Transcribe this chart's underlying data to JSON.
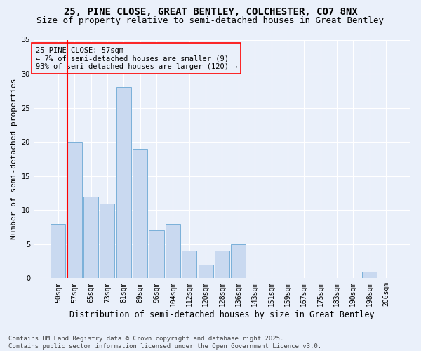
{
  "title_line1": "25, PINE CLOSE, GREAT BENTLEY, COLCHESTER, CO7 8NX",
  "title_line2": "Size of property relative to semi-detached houses in Great Bentley",
  "xlabel": "Distribution of semi-detached houses by size in Great Bentley",
  "ylabel": "Number of semi-detached properties",
  "categories": [
    "50sqm",
    "57sqm",
    "65sqm",
    "73sqm",
    "81sqm",
    "89sqm",
    "96sqm",
    "104sqm",
    "112sqm",
    "120sqm",
    "128sqm",
    "136sqm",
    "143sqm",
    "151sqm",
    "159sqm",
    "167sqm",
    "175sqm",
    "183sqm",
    "190sqm",
    "198sqm",
    "206sqm"
  ],
  "values": [
    8,
    20,
    12,
    11,
    28,
    19,
    7,
    8,
    4,
    2,
    4,
    5,
    0,
    0,
    0,
    0,
    0,
    0,
    0,
    1,
    0
  ],
  "bar_color": "#c9d9f0",
  "bar_edge_color": "#7ab0d9",
  "red_line_bar_index": 1,
  "ylim": [
    0,
    35
  ],
  "yticks": [
    0,
    5,
    10,
    15,
    20,
    25,
    30,
    35
  ],
  "annotation_title": "25 PINE CLOSE: 57sqm",
  "annotation_line1": "← 7% of semi-detached houses are smaller (9)",
  "annotation_line2": "93% of semi-detached houses are larger (120) →",
  "footer_line1": "Contains HM Land Registry data © Crown copyright and database right 2025.",
  "footer_line2": "Contains public sector information licensed under the Open Government Licence v3.0.",
  "background_color": "#eaf0fa",
  "grid_color": "#ffffff",
  "title_fontsize": 10,
  "subtitle_fontsize": 9,
  "axis_label_fontsize": 8.5,
  "tick_fontsize": 7,
  "annotation_fontsize": 7.5,
  "footer_fontsize": 6.5,
  "ylabel_fontsize": 8
}
